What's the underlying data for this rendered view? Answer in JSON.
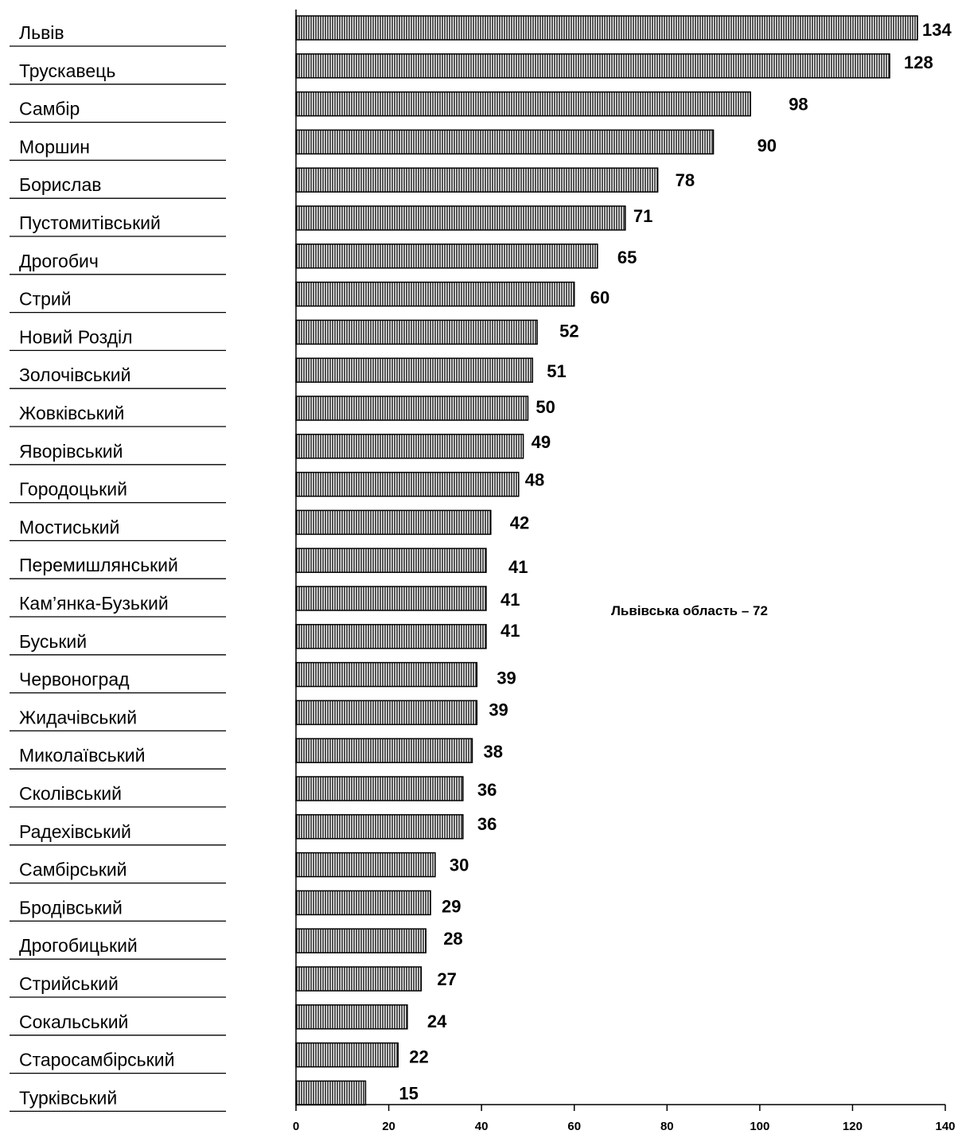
{
  "chart_data": {
    "type": "bar",
    "orientation": "horizontal",
    "categories": [
      "Львів",
      "Трускавець",
      "Самбір",
      "Моршин",
      "Борислав",
      "Пустомитівський",
      "Дрогобич",
      "Стрий",
      "Новий Розділ",
      "Золочівський",
      "Жовківський",
      "Яворівський",
      "Городоцький",
      "Мостиський",
      "Перемишлянський",
      "Кам’янка-Бузький",
      "Буський",
      "Червоноград",
      "Жидачівський",
      "Миколаївський",
      "Сколівський",
      "Радехівський",
      "Самбірський",
      "Бродівський",
      "Дрогобицький",
      "Стрийський",
      "Сокальський",
      "Старосамбірський",
      "Турківський"
    ],
    "values": [
      134,
      128,
      98,
      90,
      78,
      71,
      65,
      60,
      52,
      51,
      50,
      49,
      48,
      42,
      41,
      41,
      41,
      39,
      39,
      38,
      36,
      36,
      30,
      29,
      28,
      27,
      24,
      22,
      15
    ],
    "xlim": [
      0,
      140
    ],
    "xticks": [
      "0",
      "20",
      "40",
      "60",
      "80",
      "100",
      "120",
      "140"
    ],
    "annotation": "Львівська область – 72",
    "grid": false,
    "bar_fill": "#555555",
    "bar_stroke": "#000000"
  }
}
